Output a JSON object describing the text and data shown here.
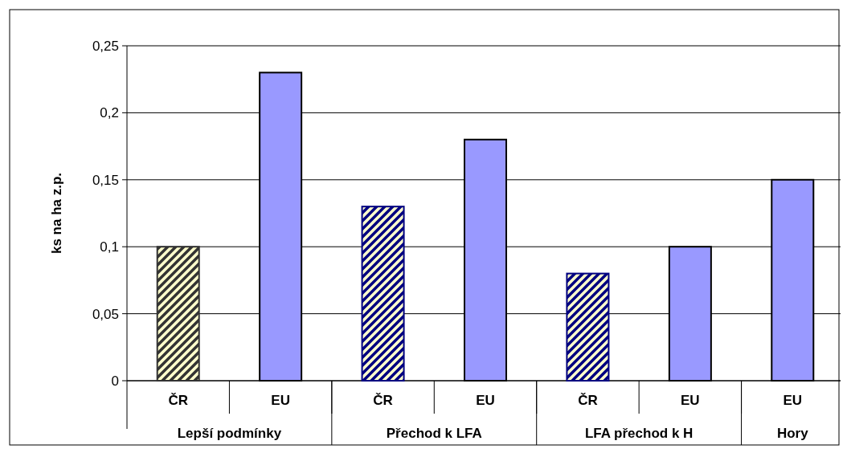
{
  "chart_data": {
    "type": "bar",
    "ylabel": "ks na ha z.p.",
    "categories": [
      "ČR",
      "EU",
      "ČR",
      "EU",
      "ČR",
      "EU",
      "EU"
    ],
    "annotations": [
      "Lepší podmínky",
      "Přechod k LFA",
      "LFA přechod k H",
      "Hory"
    ],
    "series": [
      {
        "colors": [
          "#333333",
          null,
          "#000080",
          null,
          "#000080",
          null,
          null
        ],
        "values": [
          0.1,
          null,
          0.13,
          null,
          0.08,
          null,
          null
        ]
      },
      {
        "color": "#9999ff",
        "values": [
          null,
          0.23,
          null,
          0.18,
          null,
          0.1,
          0.15
        ]
      }
    ],
    "ylim": [
      0,
      0.25
    ],
    "yticks": [
      {
        "value": 0,
        "label": "0"
      },
      {
        "value": 0.05,
        "label": "0,05"
      },
      {
        "value": 0.1,
        "label": "0,1"
      },
      {
        "value": 0.15,
        "label": "0,15"
      },
      {
        "value": 0.2,
        "label": "0,2"
      },
      {
        "value": 0.25,
        "label": "0,25"
      }
    ],
    "grid": "y"
  }
}
